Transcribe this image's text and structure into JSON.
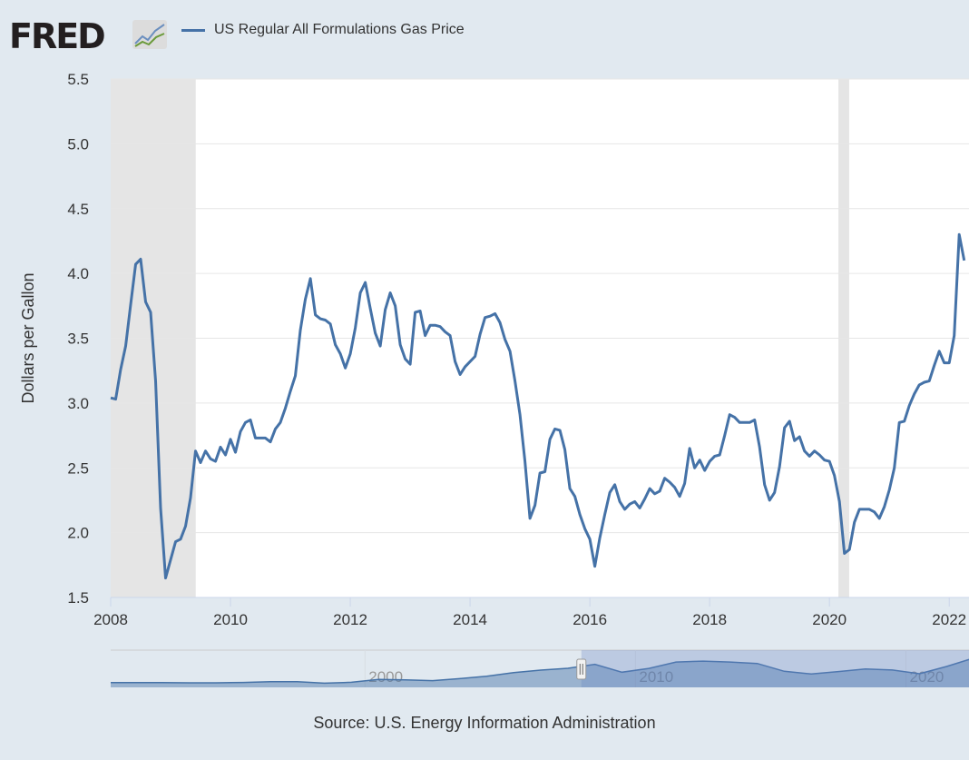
{
  "header": {
    "logo_text": "FRED",
    "series_name": "US Regular All Formulations Gas Price"
  },
  "source": "Source: U.S. Energy Information Administration",
  "colors": {
    "series": "#4572a7",
    "recession": "#e5e5e5",
    "background": "#e1e9f0"
  },
  "chart_data": {
    "type": "line",
    "title": "US Regular All Formulations Gas Price",
    "xlabel": "",
    "ylabel": "Dollars per Gallon",
    "ylim": [
      1.5,
      5.5
    ],
    "xlim": [
      2008,
      2022.33
    ],
    "yticks": [
      "1.5",
      "2.0",
      "2.5",
      "3.0",
      "3.5",
      "4.0",
      "4.5",
      "5.0",
      "5.5"
    ],
    "xticks": [
      "2008",
      "2010",
      "2012",
      "2014",
      "2016",
      "2018",
      "2020",
      "2022"
    ],
    "grid": true,
    "recessions": [
      [
        2008.0,
        2009.42
      ],
      [
        2020.15,
        2020.33
      ]
    ],
    "series": [
      {
        "name": "US Regular All Formulations Gas Price",
        "start": 2008.0,
        "frequency": "monthly",
        "values": [
          3.04,
          3.03,
          3.26,
          3.44,
          3.76,
          4.07,
          4.11,
          3.78,
          3.7,
          3.17,
          2.19,
          1.65,
          1.79,
          1.93,
          1.95,
          2.05,
          2.27,
          2.63,
          2.54,
          2.63,
          2.57,
          2.55,
          2.66,
          2.6,
          2.72,
          2.62,
          2.78,
          2.85,
          2.87,
          2.73,
          2.73,
          2.73,
          2.7,
          2.8,
          2.85,
          2.96,
          3.09,
          3.21,
          3.56,
          3.8,
          3.96,
          3.68,
          3.65,
          3.64,
          3.61,
          3.45,
          3.38,
          3.27,
          3.38,
          3.58,
          3.85,
          3.93,
          3.73,
          3.54,
          3.44,
          3.72,
          3.85,
          3.75,
          3.45,
          3.34,
          3.3,
          3.7,
          3.71,
          3.52,
          3.6,
          3.6,
          3.59,
          3.55,
          3.52,
          3.32,
          3.22,
          3.28,
          3.32,
          3.36,
          3.53,
          3.66,
          3.67,
          3.69,
          3.62,
          3.49,
          3.4,
          3.17,
          2.91,
          2.55,
          2.11,
          2.21,
          2.46,
          2.47,
          2.72,
          2.8,
          2.79,
          2.64,
          2.34,
          2.28,
          2.14,
          2.03,
          1.95,
          1.74,
          1.96,
          2.14,
          2.31,
          2.37,
          2.24,
          2.18,
          2.22,
          2.24,
          2.19,
          2.26,
          2.34,
          2.3,
          2.32,
          2.42,
          2.39,
          2.35,
          2.28,
          2.38,
          2.65,
          2.5,
          2.56,
          2.48,
          2.55,
          2.59,
          2.6,
          2.75,
          2.91,
          2.89,
          2.85,
          2.85,
          2.85,
          2.87,
          2.66,
          2.37,
          2.25,
          2.31,
          2.51,
          2.81,
          2.86,
          2.71,
          2.74,
          2.63,
          2.59,
          2.63,
          2.6,
          2.56,
          2.55,
          2.44,
          2.24,
          1.84,
          1.87,
          2.08,
          2.18,
          2.18,
          2.18,
          2.16,
          2.11,
          2.2,
          2.33,
          2.5,
          2.85,
          2.86,
          2.98,
          3.07,
          3.14,
          3.16,
          3.17,
          3.29,
          3.4,
          3.31,
          3.31,
          3.52,
          4.3,
          4.1
        ]
      }
    ],
    "navigator": {
      "xticks": [
        "2000",
        "2010",
        "2020"
      ],
      "range": [
        1990.6,
        2022.33
      ],
      "selected": [
        2008.0,
        2022.33
      ],
      "start": 1991,
      "frequency": "annual",
      "values": [
        1.14,
        1.13,
        1.11,
        1.11,
        1.15,
        1.23,
        1.23,
        1.06,
        1.17,
        1.51,
        1.46,
        1.36,
        1.59,
        1.88,
        2.3,
        2.59,
        2.8,
        3.27,
        2.35,
        2.79,
        3.53,
        3.64,
        3.53,
        3.37,
        2.45,
        2.14,
        2.42,
        2.72,
        2.6,
        2.17,
        3.01,
        4.0
      ]
    }
  }
}
